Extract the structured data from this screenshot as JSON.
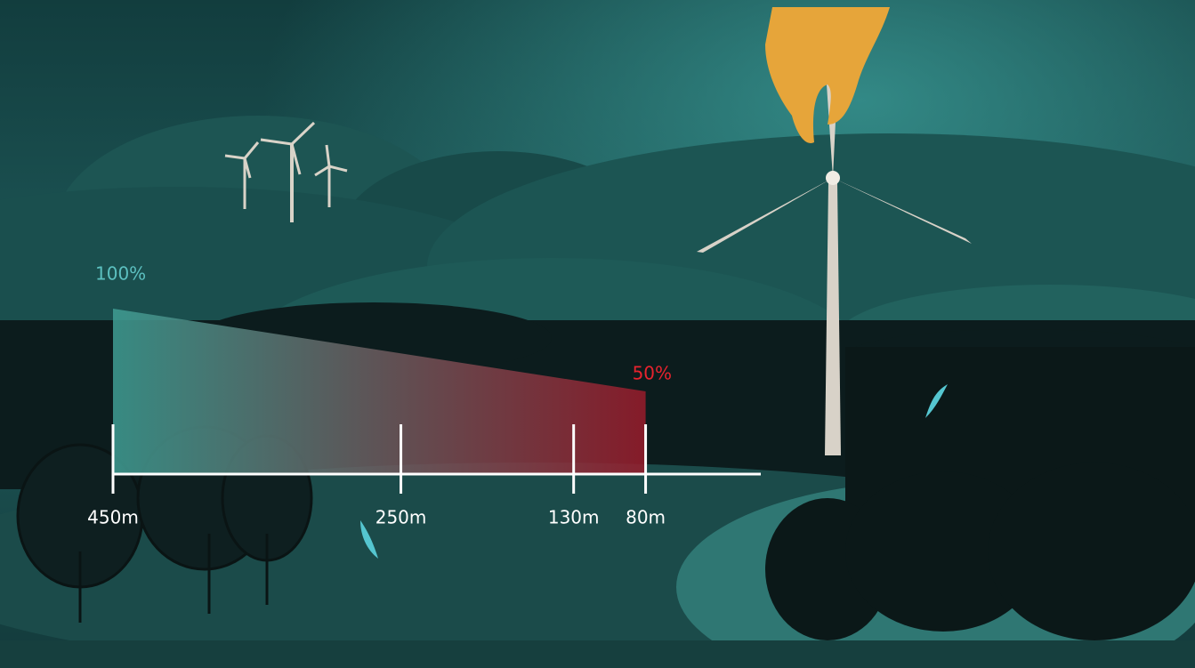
{
  "chart_data": {
    "type": "area",
    "x": [
      450,
      80
    ],
    "values": [
      100,
      50
    ],
    "value_labels": [
      "100%",
      "50%"
    ],
    "label_colors": [
      "#5cc0c0",
      "#e8232e"
    ],
    "gradient": [
      "#3f9e94",
      "#9a1b2b"
    ],
    "xlim": [
      450,
      0
    ],
    "ylim": [
      0,
      100
    ],
    "xticks": [
      {
        "value": 450,
        "label": "450m"
      },
      {
        "value": 250,
        "label": "250m"
      },
      {
        "value": 130,
        "label": "130m"
      },
      {
        "value": 80,
        "label": "80m"
      }
    ]
  }
}
